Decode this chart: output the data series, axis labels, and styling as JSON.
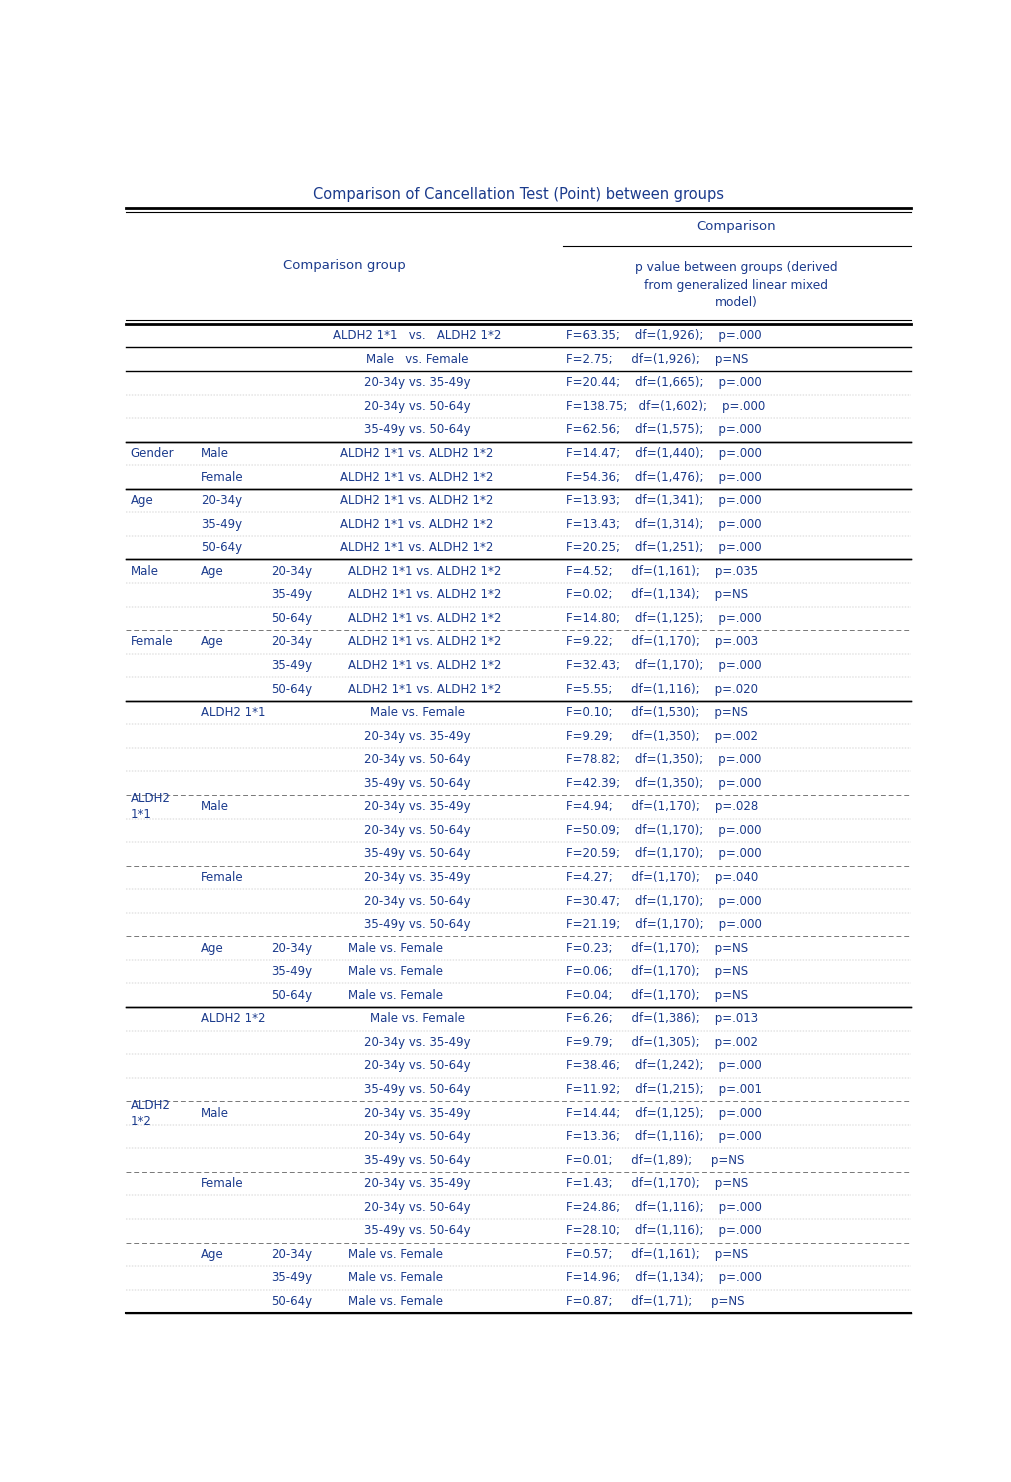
{
  "title": "Comparison of Cancellation Test (Point) between groups",
  "rows": [
    {
      "c1a": "",
      "c1b": "",
      "c1c_pre": "",
      "c1c": "ALDH2 1*1   vs.   ALDH2 1*2",
      "c2": "F=63.35;    df=(1,926);    p=.000",
      "solid_top": true,
      "solid_bottom": true,
      "dashed_bottom": false
    },
    {
      "c1a": "",
      "c1b": "",
      "c1c_pre": "",
      "c1c": "Male   vs. Female",
      "c2": "F=2.75;     df=(1,926);    p=NS",
      "solid_top": false,
      "solid_bottom": true,
      "dashed_bottom": false
    },
    {
      "c1a": "",
      "c1b": "",
      "c1c_pre": "",
      "c1c": "20-34y vs. 35-49y",
      "c2": "F=20.44;    df=(1,665);    p=.000",
      "solid_top": false,
      "solid_bottom": false,
      "dashed_bottom": false
    },
    {
      "c1a": "",
      "c1b": "",
      "c1c_pre": "",
      "c1c": "20-34y vs. 50-64y",
      "c2": "F=138.75;   df=(1,602);    p=.000",
      "solid_top": false,
      "solid_bottom": false,
      "dashed_bottom": false
    },
    {
      "c1a": "",
      "c1b": "",
      "c1c_pre": "",
      "c1c": "35-49y vs. 50-64y",
      "c2": "F=62.56;    df=(1,575);    p=.000",
      "solid_top": false,
      "solid_bottom": true,
      "dashed_bottom": false
    },
    {
      "c1a": "Gender",
      "c1b": "Male",
      "c1c_pre": "",
      "c1c": "ALDH2 1*1 vs. ALDH2 1*2",
      "c2": "F=14.47;    df=(1,440);    p=.000",
      "solid_top": true,
      "solid_bottom": false,
      "dashed_bottom": false
    },
    {
      "c1a": "",
      "c1b": "Female",
      "c1c_pre": "",
      "c1c": "ALDH2 1*1 vs. ALDH2 1*2",
      "c2": "F=54.36;    df=(1,476);    p=.000",
      "solid_top": false,
      "solid_bottom": true,
      "dashed_bottom": false
    },
    {
      "c1a": "Age",
      "c1b": "20-34y",
      "c1c_pre": "",
      "c1c": "ALDH2 1*1 vs. ALDH2 1*2",
      "c2": "F=13.93;    df=(1,341);    p=.000",
      "solid_top": true,
      "solid_bottom": false,
      "dashed_bottom": false
    },
    {
      "c1a": "",
      "c1b": "35-49y",
      "c1c_pre": "",
      "c1c": "ALDH2 1*1 vs. ALDH2 1*2",
      "c2": "F=13.43;    df=(1,314);    p=.000",
      "solid_top": false,
      "solid_bottom": false,
      "dashed_bottom": false
    },
    {
      "c1a": "",
      "c1b": "50-64y",
      "c1c_pre": "",
      "c1c": "ALDH2 1*1 vs. ALDH2 1*2",
      "c2": "F=20.25;    df=(1,251);    p=.000",
      "solid_top": false,
      "solid_bottom": true,
      "dashed_bottom": false
    },
    {
      "c1a": "Male",
      "c1b": "Age",
      "c1c_pre": "20-34y",
      "c1c": "ALDH2 1*1 vs. ALDH2 1*2",
      "c2": "F=4.52;     df=(1,161);    p=.035",
      "solid_top": true,
      "solid_bottom": false,
      "dashed_bottom": false
    },
    {
      "c1a": "",
      "c1b": "",
      "c1c_pre": "35-49y",
      "c1c": "ALDH2 1*1 vs. ALDH2 1*2",
      "c2": "F=0.02;     df=(1,134);    p=NS",
      "solid_top": false,
      "solid_bottom": false,
      "dashed_bottom": false
    },
    {
      "c1a": "",
      "c1b": "",
      "c1c_pre": "50-64y",
      "c1c": "ALDH2 1*1 vs. ALDH2 1*2",
      "c2": "F=14.80;    df=(1,125);    p=.000",
      "solid_top": false,
      "solid_bottom": false,
      "dashed_bottom": true
    },
    {
      "c1a": "Female",
      "c1b": "Age",
      "c1c_pre": "20-34y",
      "c1c": "ALDH2 1*1 vs. ALDH2 1*2",
      "c2": "F=9.22;     df=(1,170);    p=.003",
      "solid_top": false,
      "solid_bottom": false,
      "dashed_bottom": false
    },
    {
      "c1a": "",
      "c1b": "",
      "c1c_pre": "35-49y",
      "c1c": "ALDH2 1*1 vs. ALDH2 1*2",
      "c2": "F=32.43;    df=(1,170);    p=.000",
      "solid_top": false,
      "solid_bottom": false,
      "dashed_bottom": false
    },
    {
      "c1a": "",
      "c1b": "",
      "c1c_pre": "50-64y",
      "c1c": "ALDH2 1*1 vs. ALDH2 1*2",
      "c2": "F=5.55;     df=(1,116);    p=.020",
      "solid_top": false,
      "solid_bottom": true,
      "dashed_bottom": false
    },
    {
      "c1a": "",
      "c1b": "ALDH2 1*1",
      "c1c_pre": "",
      "c1c": "Male vs. Female",
      "c2": "F=0.10;     df=(1,530);    p=NS",
      "solid_top": true,
      "solid_bottom": false,
      "dashed_bottom": false
    },
    {
      "c1a": "",
      "c1b": "",
      "c1c_pre": "",
      "c1c": "20-34y vs. 35-49y",
      "c2": "F=9.29;     df=(1,350);    p=.002",
      "solid_top": false,
      "solid_bottom": false,
      "dashed_bottom": false
    },
    {
      "c1a": "",
      "c1b": "",
      "c1c_pre": "",
      "c1c": "20-34y vs. 50-64y",
      "c2": "F=78.82;    df=(1,350);    p=.000",
      "solid_top": false,
      "solid_bottom": false,
      "dashed_bottom": false
    },
    {
      "c1a": "",
      "c1b": "",
      "c1c_pre": "",
      "c1c": "35-49y vs. 50-64y",
      "c2": "F=42.39;    df=(1,350);    p=.000",
      "solid_top": false,
      "solid_bottom": false,
      "dashed_bottom": true
    },
    {
      "c1a": "ALDH2\n1*1",
      "c1b": "Male",
      "c1c_pre": "",
      "c1c": "20-34y vs. 35-49y",
      "c2": "F=4.94;     df=(1,170);    p=.028",
      "solid_top": false,
      "solid_bottom": false,
      "dashed_bottom": false
    },
    {
      "c1a": "",
      "c1b": "",
      "c1c_pre": "",
      "c1c": "20-34y vs. 50-64y",
      "c2": "F=50.09;    df=(1,170);    p=.000",
      "solid_top": false,
      "solid_bottom": false,
      "dashed_bottom": false
    },
    {
      "c1a": "",
      "c1b": "",
      "c1c_pre": "",
      "c1c": "35-49y vs. 50-64y",
      "c2": "F=20.59;    df=(1,170);    p=.000",
      "solid_top": false,
      "solid_bottom": false,
      "dashed_bottom": true
    },
    {
      "c1a": "",
      "c1b": "Female",
      "c1c_pre": "",
      "c1c": "20-34y vs. 35-49y",
      "c2": "F=4.27;     df=(1,170);    p=.040",
      "solid_top": false,
      "solid_bottom": false,
      "dashed_bottom": false
    },
    {
      "c1a": "",
      "c1b": "",
      "c1c_pre": "",
      "c1c": "20-34y vs. 50-64y",
      "c2": "F=30.47;    df=(1,170);    p=.000",
      "solid_top": false,
      "solid_bottom": false,
      "dashed_bottom": false
    },
    {
      "c1a": "",
      "c1b": "",
      "c1c_pre": "",
      "c1c": "35-49y vs. 50-64y",
      "c2": "F=21.19;    df=(1,170);    p=.000",
      "solid_top": false,
      "solid_bottom": false,
      "dashed_bottom": true
    },
    {
      "c1a": "",
      "c1b": "Age",
      "c1c_pre": "20-34y",
      "c1c": "Male vs. Female",
      "c2": "F=0.23;     df=(1,170);    p=NS",
      "solid_top": false,
      "solid_bottom": false,
      "dashed_bottom": false
    },
    {
      "c1a": "",
      "c1b": "",
      "c1c_pre": "35-49y",
      "c1c": "Male vs. Female",
      "c2": "F=0.06;     df=(1,170);    p=NS",
      "solid_top": false,
      "solid_bottom": false,
      "dashed_bottom": false
    },
    {
      "c1a": "",
      "c1b": "",
      "c1c_pre": "50-64y",
      "c1c": "Male vs. Female",
      "c2": "F=0.04;     df=(1,170);    p=NS",
      "solid_top": false,
      "solid_bottom": true,
      "dashed_bottom": false
    },
    {
      "c1a": "",
      "c1b": "ALDH2 1*2",
      "c1c_pre": "",
      "c1c": "Male vs. Female",
      "c2": "F=6.26;     df=(1,386);    p=.013",
      "solid_top": true,
      "solid_bottom": false,
      "dashed_bottom": false
    },
    {
      "c1a": "",
      "c1b": "",
      "c1c_pre": "",
      "c1c": "20-34y vs. 35-49y",
      "c2": "F=9.79;     df=(1,305);    p=.002",
      "solid_top": false,
      "solid_bottom": false,
      "dashed_bottom": false
    },
    {
      "c1a": "",
      "c1b": "",
      "c1c_pre": "",
      "c1c": "20-34y vs. 50-64y",
      "c2": "F=38.46;    df=(1,242);    p=.000",
      "solid_top": false,
      "solid_bottom": false,
      "dashed_bottom": false
    },
    {
      "c1a": "",
      "c1b": "",
      "c1c_pre": "",
      "c1c": "35-49y vs. 50-64y",
      "c2": "F=11.92;    df=(1,215);    p=.001",
      "solid_top": false,
      "solid_bottom": false,
      "dashed_bottom": true
    },
    {
      "c1a": "ALDH2\n1*2",
      "c1b": "Male",
      "c1c_pre": "",
      "c1c": "20-34y vs. 35-49y",
      "c2": "F=14.44;    df=(1,125);    p=.000",
      "solid_top": false,
      "solid_bottom": false,
      "dashed_bottom": false
    },
    {
      "c1a": "",
      "c1b": "",
      "c1c_pre": "",
      "c1c": "20-34y vs. 50-64y",
      "c2": "F=13.36;    df=(1,116);    p=.000",
      "solid_top": false,
      "solid_bottom": false,
      "dashed_bottom": false
    },
    {
      "c1a": "",
      "c1b": "",
      "c1c_pre": "",
      "c1c": "35-49y vs. 50-64y",
      "c2": "F=0.01;     df=(1,89);     p=NS",
      "solid_top": false,
      "solid_bottom": false,
      "dashed_bottom": true
    },
    {
      "c1a": "",
      "c1b": "Female",
      "c1c_pre": "",
      "c1c": "20-34y vs. 35-49y",
      "c2": "F=1.43;     df=(1,170);    p=NS",
      "solid_top": false,
      "solid_bottom": false,
      "dashed_bottom": false
    },
    {
      "c1a": "",
      "c1b": "",
      "c1c_pre": "",
      "c1c": "20-34y vs. 50-64y",
      "c2": "F=24.86;    df=(1,116);    p=.000",
      "solid_top": false,
      "solid_bottom": false,
      "dashed_bottom": false
    },
    {
      "c1a": "",
      "c1b": "",
      "c1c_pre": "",
      "c1c": "35-49y vs. 50-64y",
      "c2": "F=28.10;    df=(1,116);    p=.000",
      "solid_top": false,
      "solid_bottom": false,
      "dashed_bottom": true
    },
    {
      "c1a": "",
      "c1b": "Age",
      "c1c_pre": "20-34y",
      "c1c": "Male vs. Female",
      "c2": "F=0.57;     df=(1,161);    p=NS",
      "solid_top": false,
      "solid_bottom": false,
      "dashed_bottom": false
    },
    {
      "c1a": "",
      "c1b": "",
      "c1c_pre": "35-49y",
      "c1c": "Male vs. Female",
      "c2": "F=14.96;    df=(1,134);    p=.000",
      "solid_top": false,
      "solid_bottom": false,
      "dashed_bottom": false
    },
    {
      "c1a": "",
      "c1b": "",
      "c1c_pre": "50-64y",
      "c1c": "Male vs. Female",
      "c2": "F=0.87;     df=(1,71);     p=NS",
      "solid_top": false,
      "solid_bottom": true,
      "dashed_bottom": false
    }
  ],
  "text_color": "#1a3a8c",
  "font_family": "DejaVu Sans",
  "font_size": 8.5,
  "header_font_size": 9.5,
  "title_font_size": 10.5
}
